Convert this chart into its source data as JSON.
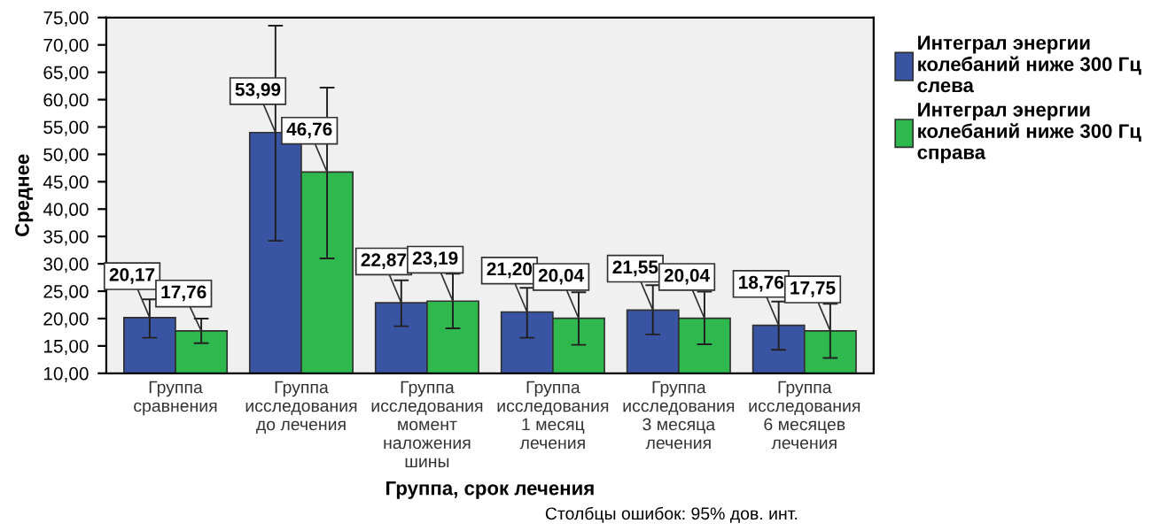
{
  "chart_data": {
    "type": "bar",
    "categories": [
      "Группа\nсравнения",
      "Группа\nисследования\nдо лечения",
      "Группа\nисследования\nмомент\nналожения\nшины",
      "Группа\nисследования\n1 месяц\nлечения",
      "Группа\nисследования\n3 месяца\nлечения",
      "Группа\nисследования\n6 месяцев\nлечения"
    ],
    "series": [
      {
        "name": "Интеграл энергии\nколебаний ниже 300 Гц\nслева",
        "color": "#3a54a4",
        "values": [
          20.17,
          53.99,
          22.87,
          21.2,
          21.55,
          18.76
        ],
        "value_labels": [
          "20,17",
          "53,99",
          "22,87",
          "21,20",
          "21,55",
          "18,76"
        ],
        "errors": [
          [
            16.5,
            23.5
          ],
          [
            34.2,
            73.5
          ],
          [
            18.6,
            27.0
          ],
          [
            16.5,
            25.6
          ],
          [
            17.1,
            26.1
          ],
          [
            14.3,
            23.1
          ]
        ]
      },
      {
        "name": "Интеграл энергии\nколебаний ниже 300 Гц\nсправа",
        "color": "#2fb84e",
        "values": [
          17.76,
          46.76,
          23.19,
          20.04,
          20.04,
          17.75
        ],
        "value_labels": [
          "17,76",
          "46,76",
          "23,19",
          "20,04",
          "20,04",
          "17,75"
        ],
        "errors": [
          [
            15.5,
            20.0
          ],
          [
            31.0,
            62.2
          ],
          [
            18.2,
            28.2
          ],
          [
            15.2,
            24.8
          ],
          [
            15.3,
            24.9
          ],
          [
            12.8,
            22.7
          ]
        ]
      }
    ],
    "ylim": [
      10,
      75
    ],
    "yticks": [
      {
        "value": 10,
        "label": "10,00"
      },
      {
        "value": 15,
        "label": "15,00"
      },
      {
        "value": 20,
        "label": "20,00"
      },
      {
        "value": 25,
        "label": "25,00"
      },
      {
        "value": 30,
        "label": "30,00"
      },
      {
        "value": 35,
        "label": "35,00"
      },
      {
        "value": 40,
        "label": "40,00"
      },
      {
        "value": 45,
        "label": "45,00"
      },
      {
        "value": 50,
        "label": "50,00"
      },
      {
        "value": 55,
        "label": "55,00"
      },
      {
        "value": 60,
        "label": "60,00"
      },
      {
        "value": 65,
        "label": "65,00"
      },
      {
        "value": 70,
        "label": "70,00"
      },
      {
        "value": 75,
        "label": "75,00"
      }
    ],
    "xlabel": "Группа, срок лечения",
    "ylabel": "Среднее",
    "annotations": [
      "Столбцы ошибок: 95% дов. инт."
    ],
    "legend": "top right",
    "grid": false
  }
}
